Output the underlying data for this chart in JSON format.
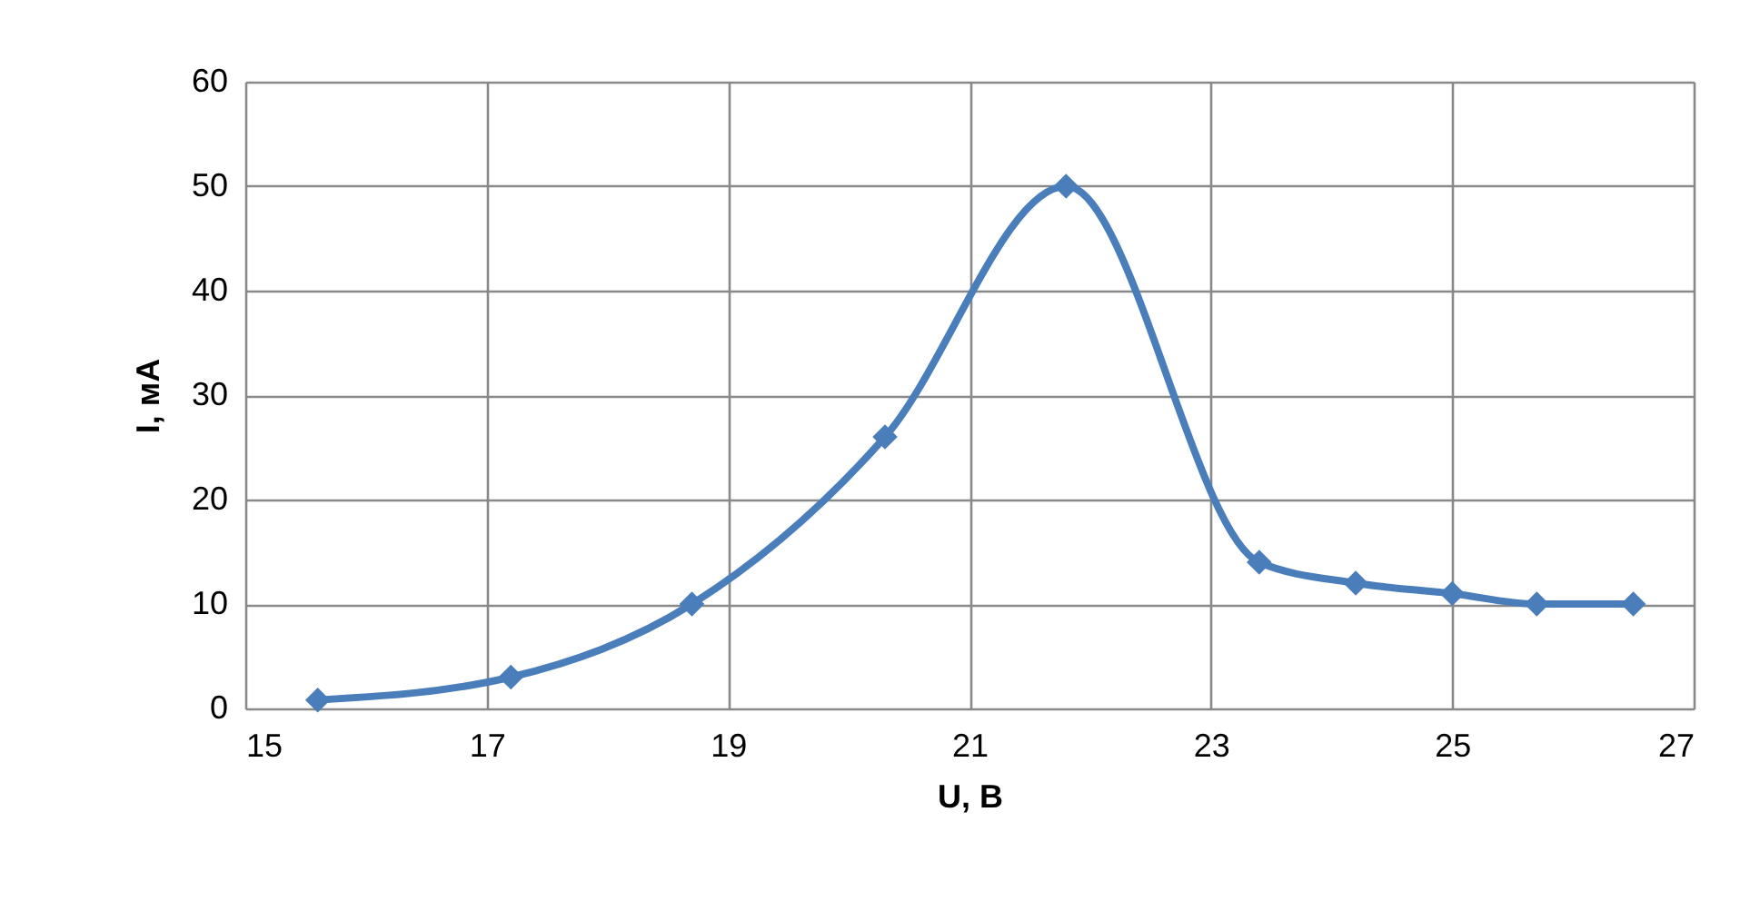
{
  "chart_data": {
    "type": "line",
    "xlabel": "U, В",
    "ylabel": "I, мА",
    "x": [
      15.6,
      17.2,
      18.7,
      20.3,
      21.8,
      23.4,
      24.2,
      25.0,
      25.7,
      26.5
    ],
    "series": [
      {
        "color": "#4a7ebb",
        "values": [
          0.8,
          3,
          10,
          26,
          50,
          14,
          12,
          11,
          10,
          10
        ]
      }
    ],
    "xlim": [
      15,
      27
    ],
    "xticks": [
      15,
      17,
      19,
      21,
      23,
      25,
      27
    ],
    "ylim": [
      0,
      60
    ],
    "yticks": [
      0,
      10,
      20,
      30,
      40,
      50,
      60
    ],
    "grid": true,
    "marker": "diamond",
    "line_style": "solid"
  }
}
